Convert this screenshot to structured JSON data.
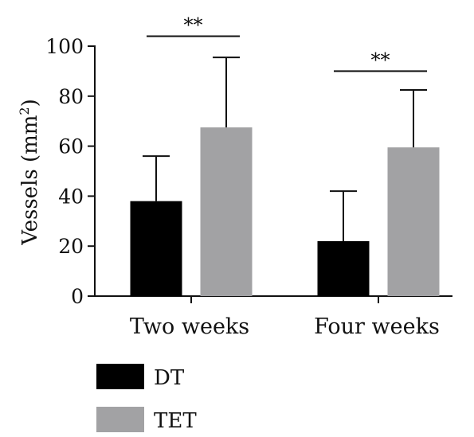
{
  "chart_data": {
    "type": "bar",
    "title": "",
    "xlabel": "",
    "ylabel": "Vessels (mm",
    "ylabel_sup": "2",
    "ylabel_close": ")",
    "ylim": [
      0,
      100
    ],
    "yticks": [
      0,
      20,
      40,
      60,
      80,
      100
    ],
    "categories": [
      "Two weeks",
      "Four weeks"
    ],
    "series": [
      {
        "name": "DT",
        "color": "#000000",
        "values": [
          38,
          22
        ],
        "errors": [
          18,
          20
        ]
      },
      {
        "name": "TET",
        "color": "#a2a2a4",
        "values": [
          67.5,
          59.5
        ],
        "errors": [
          28,
          23
        ]
      }
    ],
    "significance": [
      {
        "category": "Two weeks",
        "label": "**",
        "y": 104
      },
      {
        "category": "Four weeks",
        "label": "**",
        "y": 90
      }
    ],
    "legend": {
      "placement": "bottom-left"
    },
    "grid": false
  }
}
